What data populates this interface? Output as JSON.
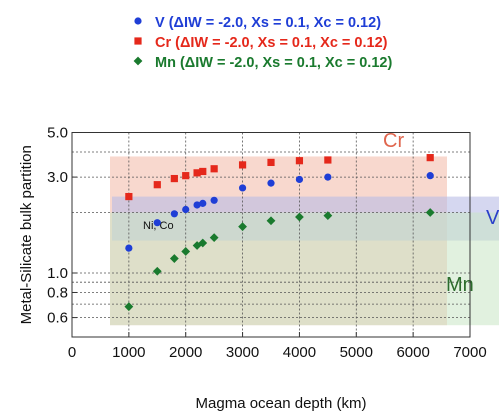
{
  "chart_data": {
    "type": "scatter",
    "xlabel": "Magma ocean depth (km)",
    "ylabel": "Metal-Silicate bulk partition",
    "xlim": [
      0,
      7000
    ],
    "ylim": [
      0.5,
      5.0
    ],
    "yscale": "log",
    "x_ticks": [
      "0",
      "1000",
      "2000",
      "3000",
      "4000",
      "5000",
      "6000",
      "7000"
    ],
    "y_ticks": [
      "0.6",
      "0.8",
      "1.0",
      "3.0",
      "5.0"
    ],
    "grid": true,
    "legend_position": "top-right",
    "series": [
      {
        "name": "V  (ΔIW = -2.0, Xs  = 0.1, Xc = 0.12)",
        "marker": "circle",
        "color": "#1f3ed6",
        "points": [
          [
            1000,
            1.33
          ],
          [
            1500,
            1.78
          ],
          [
            1800,
            1.97
          ],
          [
            2000,
            2.07
          ],
          [
            2200,
            2.18
          ],
          [
            2300,
            2.22
          ],
          [
            2500,
            2.3
          ],
          [
            3000,
            2.65
          ],
          [
            3500,
            2.8
          ],
          [
            4000,
            2.92
          ],
          [
            4500,
            3.0
          ],
          [
            6300,
            3.05
          ]
        ]
      },
      {
        "name": "Cr  (ΔIW = -2.0, Xs  = 0.1, Xc = 0.12)",
        "marker": "square",
        "color": "#e5281b",
        "points": [
          [
            1000,
            2.4
          ],
          [
            1500,
            2.75
          ],
          [
            1800,
            2.95
          ],
          [
            2000,
            3.05
          ],
          [
            2200,
            3.15
          ],
          [
            2300,
            3.2
          ],
          [
            2500,
            3.3
          ],
          [
            3000,
            3.45
          ],
          [
            3500,
            3.55
          ],
          [
            4000,
            3.62
          ],
          [
            4500,
            3.65
          ],
          [
            6300,
            3.75
          ]
        ]
      },
      {
        "name": "Mn  (ΔIW = -2.0, Xs  = 0.1, Xc = 0.12)",
        "marker": "diamond",
        "color": "#1a7a2e",
        "points": [
          [
            1000,
            0.68
          ],
          [
            1500,
            1.02
          ],
          [
            1800,
            1.18
          ],
          [
            2000,
            1.28
          ],
          [
            2200,
            1.37
          ],
          [
            2300,
            1.41
          ],
          [
            2500,
            1.5
          ],
          [
            3000,
            1.7
          ],
          [
            3500,
            1.82
          ],
          [
            4000,
            1.9
          ],
          [
            4500,
            1.93
          ],
          [
            6300,
            2.0
          ]
        ]
      }
    ],
    "bands": [
      {
        "label": "Cr",
        "color": "#f2b8a6",
        "ymin": 0.55,
        "ymax": 3.8
      },
      {
        "label": "V",
        "color": "#b9bde6",
        "ymin": 1.45,
        "ymax": 2.4
      },
      {
        "label": "Mn",
        "color": "#c9e6c4",
        "ymin": 0.55,
        "ymax": 2.0
      }
    ],
    "annotations": [
      {
        "text": "Ni, Co"
      }
    ]
  }
}
